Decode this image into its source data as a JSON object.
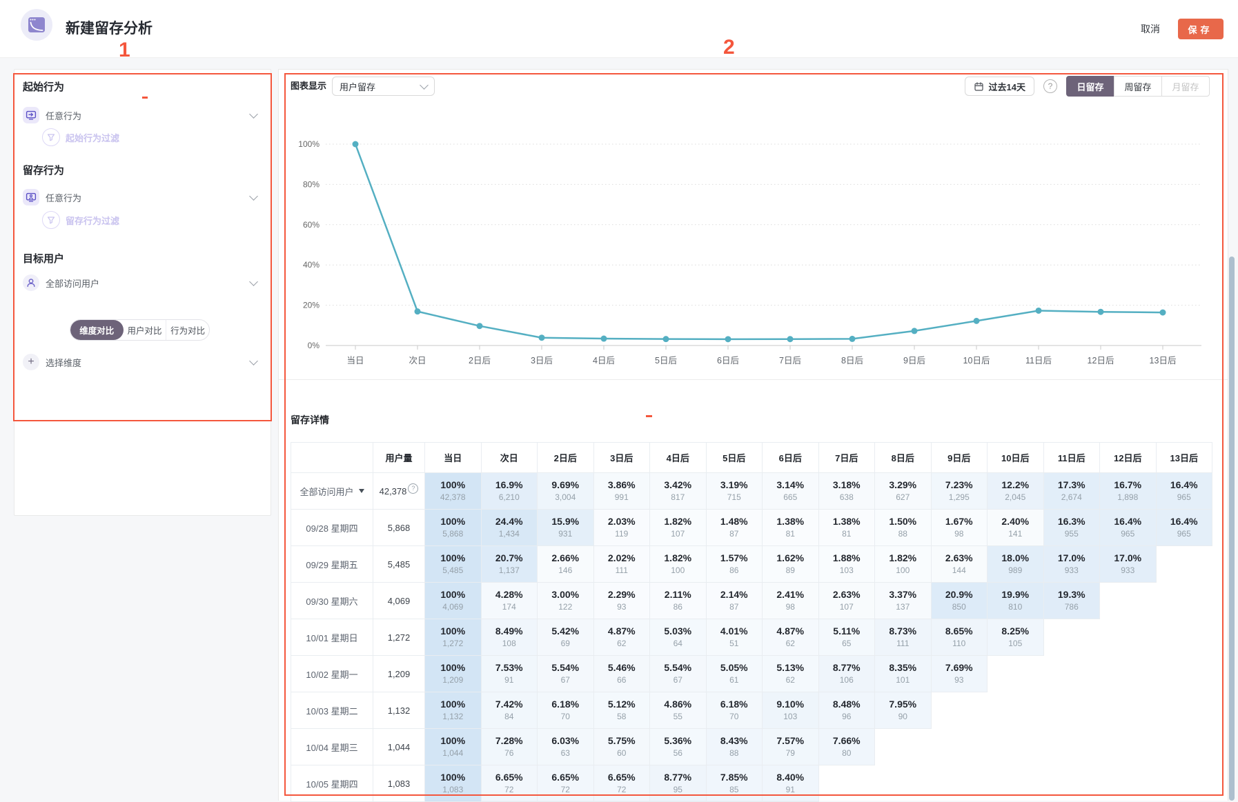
{
  "page": {
    "title": "新建留存分析",
    "cancel": "取消",
    "save": "保存"
  },
  "annotations": {
    "marker1": "1",
    "marker2": "2"
  },
  "sidebar": {
    "start_section": {
      "title": "起始行为",
      "event": "任意行为",
      "filter": "起始行为过滤"
    },
    "retain_section": {
      "title": "留存行为",
      "event": "任意行为",
      "filter": "留存行为过滤"
    },
    "target_section": {
      "title": "目标用户",
      "user": "全部访问用户"
    },
    "compare_tabs": [
      {
        "label": "维度对比",
        "selected": true
      },
      {
        "label": "用户对比",
        "selected": false
      },
      {
        "label": "行为对比",
        "selected": false
      }
    ],
    "dimension_label": "选择维度"
  },
  "chart_panel": {
    "display_label": "图表显示",
    "display_value": "用户留存",
    "date_range": "过去14天",
    "help_glyph": "?",
    "granularity_tabs": [
      {
        "label": "日留存",
        "state": "selected"
      },
      {
        "label": "周留存",
        "state": "normal"
      },
      {
        "label": "月留存",
        "state": "disabled"
      }
    ]
  },
  "chart_data": {
    "type": "line",
    "title": "用户留存",
    "series_name": "全部访问用户",
    "categories": [
      "当日",
      "次日",
      "2日后",
      "3日后",
      "4日后",
      "5日后",
      "6日后",
      "7日后",
      "8日后",
      "9日后",
      "10日后",
      "11日后",
      "12日后",
      "13日后"
    ],
    "values": [
      100,
      16.9,
      9.69,
      3.86,
      3.42,
      3.19,
      3.14,
      3.18,
      3.29,
      7.23,
      12.2,
      17.3,
      16.7,
      16.4
    ],
    "y_ticks": [
      "0%",
      "20%",
      "40%",
      "60%",
      "80%",
      "100%"
    ],
    "ylim": [
      0,
      100
    ],
    "grid": "dotted-horizontal",
    "legend": "none",
    "line_color": "#54afc2"
  },
  "table": {
    "title": "留存详情",
    "columns": [
      "",
      "用户量",
      "当日",
      "次日",
      "2日后",
      "3日后",
      "4日后",
      "5日后",
      "6日后",
      "7日后",
      "8日后",
      "9日后",
      "10日后",
      "11日后",
      "12日后",
      "13日后"
    ],
    "rows": [
      {
        "label": "全部访问用户",
        "dropdown": true,
        "users": "42,378",
        "users_help": true,
        "cells": [
          [
            "100%",
            "42,378"
          ],
          [
            "16.9%",
            "6,210"
          ],
          [
            "9.69%",
            "3,004"
          ],
          [
            "3.86%",
            "991"
          ],
          [
            "3.42%",
            "817"
          ],
          [
            "3.19%",
            "715"
          ],
          [
            "3.14%",
            "665"
          ],
          [
            "3.18%",
            "638"
          ],
          [
            "3.29%",
            "627"
          ],
          [
            "7.23%",
            "1,295"
          ],
          [
            "12.2%",
            "2,045"
          ],
          [
            "17.3%",
            "2,674"
          ],
          [
            "16.7%",
            "1,898"
          ],
          [
            "16.4%",
            "965"
          ]
        ]
      },
      {
        "label": "09/28 星期四",
        "users": "5,868",
        "cells": [
          [
            "100%",
            "5,868"
          ],
          [
            "24.4%",
            "1,434"
          ],
          [
            "15.9%",
            "931"
          ],
          [
            "2.03%",
            "119"
          ],
          [
            "1.82%",
            "107"
          ],
          [
            "1.48%",
            "87"
          ],
          [
            "1.38%",
            "81"
          ],
          [
            "1.38%",
            "81"
          ],
          [
            "1.50%",
            "88"
          ],
          [
            "1.67%",
            "98"
          ],
          [
            "2.40%",
            "141"
          ],
          [
            "16.3%",
            "955"
          ],
          [
            "16.4%",
            "965"
          ],
          [
            "16.4%",
            "965"
          ]
        ]
      },
      {
        "label": "09/29 星期五",
        "users": "5,485",
        "cells": [
          [
            "100%",
            "5,485"
          ],
          [
            "20.7%",
            "1,137"
          ],
          [
            "2.66%",
            "146"
          ],
          [
            "2.02%",
            "111"
          ],
          [
            "1.82%",
            "100"
          ],
          [
            "1.57%",
            "86"
          ],
          [
            "1.62%",
            "89"
          ],
          [
            "1.88%",
            "103"
          ],
          [
            "1.82%",
            "100"
          ],
          [
            "2.63%",
            "144"
          ],
          [
            "18.0%",
            "989"
          ],
          [
            "17.0%",
            "933"
          ],
          [
            "17.0%",
            "933"
          ]
        ]
      },
      {
        "label": "09/30 星期六",
        "users": "4,069",
        "cells": [
          [
            "100%",
            "4,069"
          ],
          [
            "4.28%",
            "174"
          ],
          [
            "3.00%",
            "122"
          ],
          [
            "2.29%",
            "93"
          ],
          [
            "2.11%",
            "86"
          ],
          [
            "2.14%",
            "87"
          ],
          [
            "2.41%",
            "98"
          ],
          [
            "2.63%",
            "107"
          ],
          [
            "3.37%",
            "137"
          ],
          [
            "20.9%",
            "850"
          ],
          [
            "19.9%",
            "810"
          ],
          [
            "19.3%",
            "786"
          ]
        ]
      },
      {
        "label": "10/01 星期日",
        "users": "1,272",
        "cells": [
          [
            "100%",
            "1,272"
          ],
          [
            "8.49%",
            "108"
          ],
          [
            "5.42%",
            "69"
          ],
          [
            "4.87%",
            "62"
          ],
          [
            "5.03%",
            "64"
          ],
          [
            "4.01%",
            "51"
          ],
          [
            "4.87%",
            "62"
          ],
          [
            "5.11%",
            "65"
          ],
          [
            "8.73%",
            "111"
          ],
          [
            "8.65%",
            "110"
          ],
          [
            "8.25%",
            "105"
          ]
        ]
      },
      {
        "label": "10/02 星期一",
        "users": "1,209",
        "cells": [
          [
            "100%",
            "1,209"
          ],
          [
            "7.53%",
            "91"
          ],
          [
            "5.54%",
            "67"
          ],
          [
            "5.46%",
            "66"
          ],
          [
            "5.54%",
            "67"
          ],
          [
            "5.05%",
            "61"
          ],
          [
            "5.13%",
            "62"
          ],
          [
            "8.77%",
            "106"
          ],
          [
            "8.35%",
            "101"
          ],
          [
            "7.69%",
            "93"
          ]
        ]
      },
      {
        "label": "10/03 星期二",
        "users": "1,132",
        "cells": [
          [
            "100%",
            "1,132"
          ],
          [
            "7.42%",
            "84"
          ],
          [
            "6.18%",
            "70"
          ],
          [
            "5.12%",
            "58"
          ],
          [
            "4.86%",
            "55"
          ],
          [
            "6.18%",
            "70"
          ],
          [
            "9.10%",
            "103"
          ],
          [
            "8.48%",
            "96"
          ],
          [
            "7.95%",
            "90"
          ]
        ]
      },
      {
        "label": "10/04 星期三",
        "users": "1,044",
        "cells": [
          [
            "100%",
            "1,044"
          ],
          [
            "7.28%",
            "76"
          ],
          [
            "6.03%",
            "63"
          ],
          [
            "5.75%",
            "60"
          ],
          [
            "5.36%",
            "56"
          ],
          [
            "8.43%",
            "88"
          ],
          [
            "7.57%",
            "79"
          ],
          [
            "7.66%",
            "80"
          ]
        ]
      },
      {
        "label": "10/05 星期四",
        "users": "1,083",
        "cells": [
          [
            "100%",
            "1,083"
          ],
          [
            "6.65%",
            "72"
          ],
          [
            "6.65%",
            "72"
          ],
          [
            "6.65%",
            "72"
          ],
          [
            "8.77%",
            "95"
          ],
          [
            "7.85%",
            "85"
          ],
          [
            "8.40%",
            "91"
          ]
        ]
      }
    ]
  },
  "colors": {
    "accent_orange": "#e8684a",
    "line_teal": "#54afc2",
    "annotation_red": "#f4563c",
    "selected_dark": "#6d6379",
    "today_column_blue": "#d3e5f5"
  }
}
